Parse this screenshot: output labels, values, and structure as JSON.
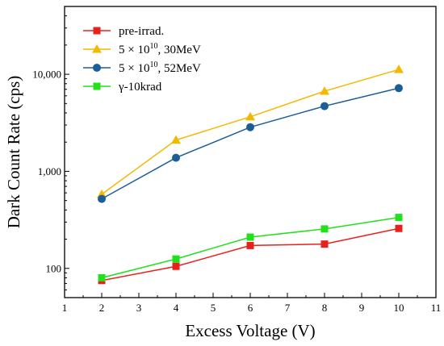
{
  "chart_data": {
    "type": "line",
    "xlabel": "Excess Voltage (V)",
    "ylabel": "Dark Count Rate (cps)",
    "xlim": [
      1,
      11
    ],
    "ylim": [
      50,
      50000
    ],
    "y_scale": "log",
    "x_ticks": [
      1,
      2,
      3,
      4,
      5,
      6,
      7,
      8,
      9,
      10,
      11
    ],
    "x_tick_labels": [
      "1",
      "2",
      "3",
      "4",
      "5",
      "6",
      "7",
      "8",
      "9",
      "10",
      "11"
    ],
    "y_ticks": [
      100,
      1000,
      10000
    ],
    "y_tick_labels": [
      "100",
      "1,000",
      "10,000"
    ],
    "grid": false,
    "legend_position": "top-left",
    "x": [
      2,
      4,
      6,
      8,
      10
    ],
    "series": [
      {
        "name": "pre-irrad.",
        "name_base": "pre-irrad.",
        "name_exp": "",
        "name_suffix": "",
        "color": "#e8211c",
        "marker": "square",
        "values": [
          75,
          105,
          172,
          178,
          258
        ]
      },
      {
        "name": "5 × 10^10, 30MeV",
        "name_base": "5 × 10",
        "name_exp": "10",
        "name_suffix": ", 30MeV",
        "color": "#f5b800",
        "marker": "triangle",
        "values": [
          580,
          2100,
          3650,
          6700,
          11200
        ]
      },
      {
        "name": "5 × 10^10, 52MeV",
        "name_base": "5 × 10",
        "name_exp": "10",
        "name_suffix": ", 52MeV",
        "color": "#1c5d97",
        "marker": "circle",
        "values": [
          520,
          1380,
          2850,
          4700,
          7200
        ]
      },
      {
        "name": "γ-10krad",
        "name_base": "γ-10krad",
        "name_exp": "",
        "name_suffix": "",
        "color": "#22e01c",
        "marker": "square",
        "values": [
          80,
          125,
          210,
          255,
          335
        ]
      }
    ]
  }
}
